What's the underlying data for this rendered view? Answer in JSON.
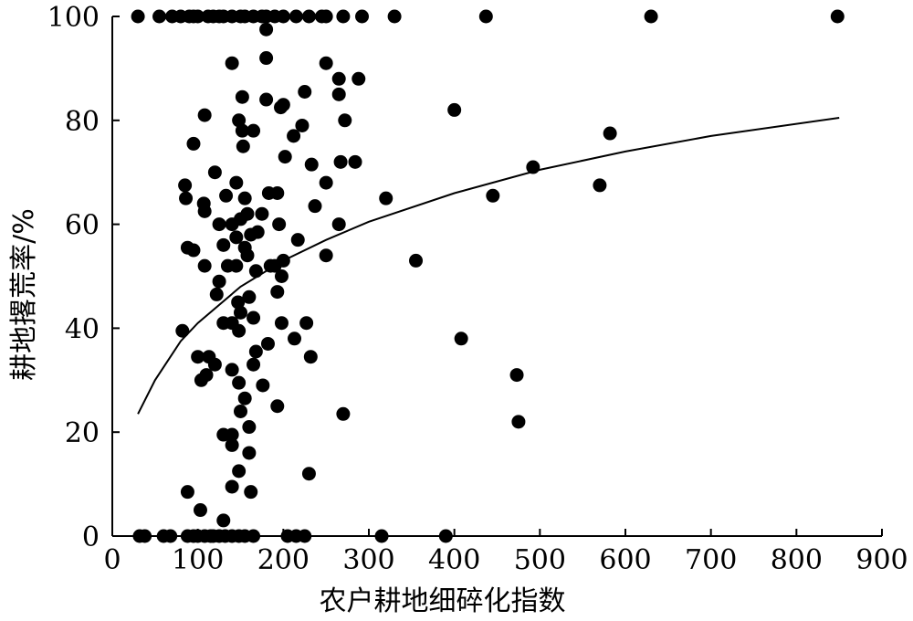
{
  "chart_data": {
    "type": "scatter",
    "xlabel": "农户耕地细碎化指数",
    "ylabel": "耕地撂荒率/%",
    "xlim": [
      0,
      900
    ],
    "ylim": [
      0,
      100
    ],
    "x_ticks": [
      0,
      100,
      200,
      300,
      400,
      500,
      600,
      700,
      800,
      900
    ],
    "y_ticks": [
      0,
      20,
      40,
      60,
      80,
      100
    ],
    "x_tick_labels": [
      "0",
      "100",
      "200",
      "300",
      "400",
      "500",
      "600",
      "700",
      "800",
      "900"
    ],
    "y_tick_labels": [
      "0",
      "20",
      "40",
      "60",
      "80",
      "100"
    ],
    "grid": false,
    "fit_curve": {
      "kind": "logarithmic",
      "points": [
        [
          30,
          23.5
        ],
        [
          50,
          30
        ],
        [
          80,
          37.5
        ],
        [
          100,
          41
        ],
        [
          150,
          48
        ],
        [
          200,
          53
        ],
        [
          250,
          57
        ],
        [
          300,
          60.5
        ],
        [
          400,
          66
        ],
        [
          500,
          70.5
        ],
        [
          600,
          74
        ],
        [
          700,
          77
        ],
        [
          850,
          80.5
        ]
      ]
    },
    "points": [
      [
        30,
        100
      ],
      [
        55,
        100
      ],
      [
        70,
        100
      ],
      [
        80,
        100
      ],
      [
        90,
        100
      ],
      [
        95,
        100
      ],
      [
        100,
        100
      ],
      [
        112,
        100
      ],
      [
        118,
        100
      ],
      [
        125,
        100
      ],
      [
        130,
        100
      ],
      [
        140,
        100
      ],
      [
        150,
        100
      ],
      [
        155,
        100
      ],
      [
        165,
        100
      ],
      [
        175,
        100
      ],
      [
        180,
        100
      ],
      [
        190,
        100
      ],
      [
        200,
        100
      ],
      [
        215,
        100
      ],
      [
        230,
        100
      ],
      [
        245,
        100
      ],
      [
        250,
        100
      ],
      [
        270,
        100
      ],
      [
        292,
        100
      ],
      [
        330,
        100
      ],
      [
        437,
        100
      ],
      [
        630,
        100
      ],
      [
        848,
        100
      ],
      [
        32,
        0
      ],
      [
        38,
        0
      ],
      [
        60,
        0
      ],
      [
        68,
        0
      ],
      [
        88,
        0
      ],
      [
        95,
        0
      ],
      [
        100,
        0
      ],
      [
        108,
        0
      ],
      [
        115,
        0
      ],
      [
        118,
        0
      ],
      [
        125,
        0
      ],
      [
        132,
        0
      ],
      [
        140,
        0
      ],
      [
        148,
        0
      ],
      [
        155,
        0
      ],
      [
        165,
        0
      ],
      [
        205,
        0
      ],
      [
        215,
        0
      ],
      [
        225,
        0
      ],
      [
        315,
        0
      ],
      [
        390,
        0
      ],
      [
        180,
        97.5
      ],
      [
        140,
        91
      ],
      [
        180,
        92
      ],
      [
        250,
        91
      ],
      [
        265,
        88
      ],
      [
        288,
        88
      ],
      [
        225,
        85.5
      ],
      [
        180,
        84
      ],
      [
        152,
        84.5
      ],
      [
        265,
        85
      ],
      [
        200,
        83
      ],
      [
        197,
        82.5
      ],
      [
        108,
        81
      ],
      [
        148,
        80
      ],
      [
        222,
        79
      ],
      [
        272,
        80
      ],
      [
        152,
        78
      ],
      [
        165,
        78
      ],
      [
        212,
        77
      ],
      [
        95,
        75.5
      ],
      [
        153,
        75
      ],
      [
        202,
        73
      ],
      [
        267,
        72
      ],
      [
        284,
        72
      ],
      [
        233,
        71.5
      ],
      [
        120,
        70
      ],
      [
        85,
        67.5
      ],
      [
        145,
        68
      ],
      [
        183,
        66
      ],
      [
        193,
        66
      ],
      [
        133,
        65.5
      ],
      [
        155,
        65
      ],
      [
        86,
        65
      ],
      [
        250,
        68
      ],
      [
        320,
        65
      ],
      [
        107,
        64
      ],
      [
        158,
        62
      ],
      [
        237,
        63.5
      ],
      [
        108,
        62.5
      ],
      [
        175,
        62
      ],
      [
        150,
        61
      ],
      [
        125,
        60
      ],
      [
        140,
        60
      ],
      [
        195,
        60
      ],
      [
        265,
        60
      ],
      [
        170,
        58.5
      ],
      [
        162,
        58
      ],
      [
        145,
        57.5
      ],
      [
        88,
        55.5
      ],
      [
        95,
        55
      ],
      [
        130,
        56
      ],
      [
        155,
        55.5
      ],
      [
        217,
        57
      ],
      [
        158,
        54
      ],
      [
        185,
        52
      ],
      [
        190,
        52
      ],
      [
        200,
        53
      ],
      [
        198,
        50
      ],
      [
        145,
        52
      ],
      [
        108,
        52
      ],
      [
        135,
        52
      ],
      [
        168,
        51
      ],
      [
        125,
        49
      ],
      [
        250,
        54
      ],
      [
        355,
        53
      ],
      [
        400,
        82
      ],
      [
        445,
        65.5
      ],
      [
        492,
        71
      ],
      [
        570,
        67.5
      ],
      [
        582,
        77.5
      ],
      [
        122,
        46.5
      ],
      [
        160,
        46
      ],
      [
        147,
        45
      ],
      [
        193,
        47
      ],
      [
        150,
        43
      ],
      [
        140,
        41
      ],
      [
        198,
        41
      ],
      [
        165,
        42
      ],
      [
        227,
        41
      ],
      [
        130,
        41
      ],
      [
        148,
        39.5
      ],
      [
        82,
        39.5
      ],
      [
        182,
        37
      ],
      [
        213,
        38
      ],
      [
        168,
        35.5
      ],
      [
        408,
        38
      ],
      [
        100,
        34.5
      ],
      [
        113,
        34.5
      ],
      [
        165,
        33
      ],
      [
        232,
        34.5
      ],
      [
        120,
        33
      ],
      [
        140,
        32
      ],
      [
        110,
        31
      ],
      [
        104,
        30
      ],
      [
        148,
        29.5
      ],
      [
        176,
        29
      ],
      [
        155,
        26.5
      ],
      [
        193,
        25
      ],
      [
        270,
        23.5
      ],
      [
        150,
        24
      ],
      [
        160,
        21
      ],
      [
        130,
        19.5
      ],
      [
        140,
        19.5
      ],
      [
        140,
        17.5
      ],
      [
        160,
        16
      ],
      [
        230,
        12
      ],
      [
        148,
        12.5
      ],
      [
        140,
        9.5
      ],
      [
        88,
        8.5
      ],
      [
        162,
        8.5
      ],
      [
        103,
        5
      ],
      [
        130,
        3
      ],
      [
        473,
        31
      ],
      [
        475,
        22
      ]
    ]
  }
}
